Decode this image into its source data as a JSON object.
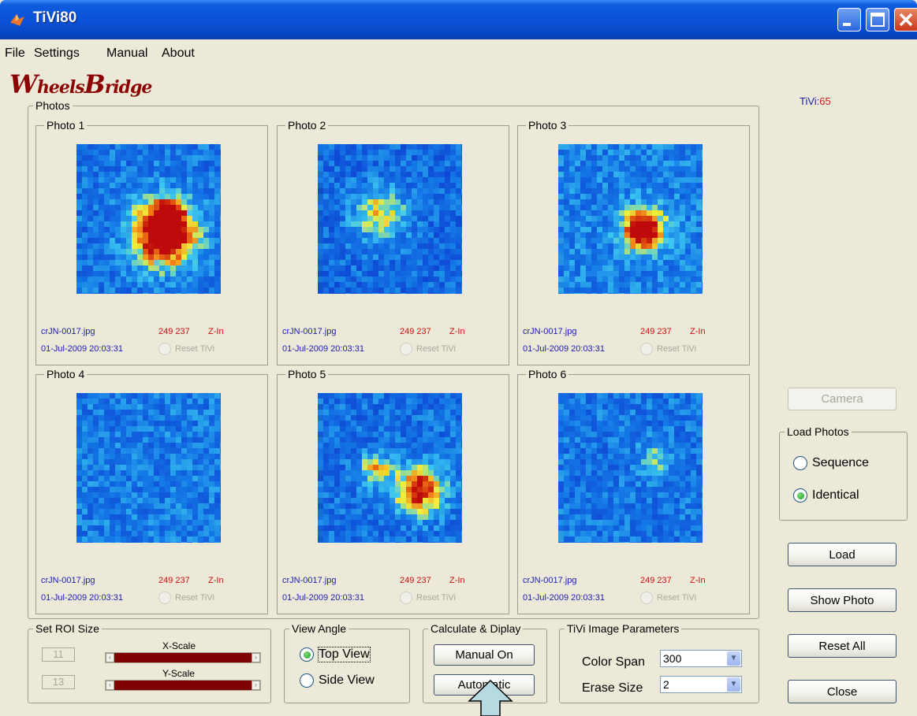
{
  "window": {
    "title": "TiVi80"
  },
  "menu": [
    "File",
    "Settings",
    "Manual",
    "About"
  ],
  "logo": {
    "first_cap": "W",
    "first_rest": "heels",
    "second_cap": "B",
    "second_rest": "ridge"
  },
  "tivi": {
    "label": "TiVi:",
    "value": "65"
  },
  "photos_group": {
    "title": "Photos",
    "panels": [
      {
        "title": "Photo 1",
        "file": "crJN-0017.jpg",
        "coords": "249 237",
        "zoom": "Z-In",
        "date": "01-Jul-2009 20:03:31",
        "reset": "Reset TiVi"
      },
      {
        "title": "Photo 2",
        "file": "crJN-0017.jpg",
        "coords": "249 237",
        "zoom": "Z-In",
        "date": "01-Jul-2009 20:03:31",
        "reset": "Reset TiVi"
      },
      {
        "title": "Photo 3",
        "file": "crJN-0017.jpg",
        "coords": "249 237",
        "zoom": "Z-In",
        "date": "01-Jul-2009 20:03:31",
        "reset": "Reset TiVi"
      },
      {
        "title": "Photo 4",
        "file": "crJN-0017.jpg",
        "coords": "249 237",
        "zoom": "Z-In",
        "date": "01-Jul-2009 20:03:31",
        "reset": "Reset TiVi"
      },
      {
        "title": "Photo 5",
        "file": "crJN-0017.jpg",
        "coords": "249 237",
        "zoom": "Z-In",
        "date": "01-Jul-2009 20:03:31",
        "reset": "Reset TiVi"
      },
      {
        "title": "Photo 6",
        "file": "crJN-0017.jpg",
        "coords": "249 237",
        "zoom": "Z-In",
        "date": "01-Jul-2009 20:03:31",
        "reset": "Reset TiVi"
      }
    ]
  },
  "roi": {
    "title": "Set ROI Size",
    "x_value": "11",
    "x_label": "X-Scale",
    "y_value": "13",
    "y_label": "Y-Scale"
  },
  "view_angle": {
    "title": "View Angle",
    "top_label": "Top View",
    "side_label": "Side View",
    "selected": "top"
  },
  "calc": {
    "title": "Calculate & Diplay",
    "manual_label": "Manual On",
    "auto_label": "Automatic"
  },
  "params": {
    "title": "TiVi Image Parameters",
    "color_span_label": "Color Span",
    "color_span_value": "300",
    "erase_size_label": "Erase Size",
    "erase_size_value": "2"
  },
  "side": {
    "camera_label": "Camera",
    "load_photos_title": "Load Photos",
    "sequence_label": "Sequence",
    "identical_label": "Identical",
    "selected": "identical",
    "load_label": "Load",
    "show_photo_label": "Show Photo",
    "reset_all_label": "Reset All",
    "close_label": "Close"
  },
  "colors": {
    "title_bar": "#0A52D8",
    "slider_track": "#7E0000",
    "tivi_value": "#CC2020",
    "file_text": "#1B1BB0"
  }
}
